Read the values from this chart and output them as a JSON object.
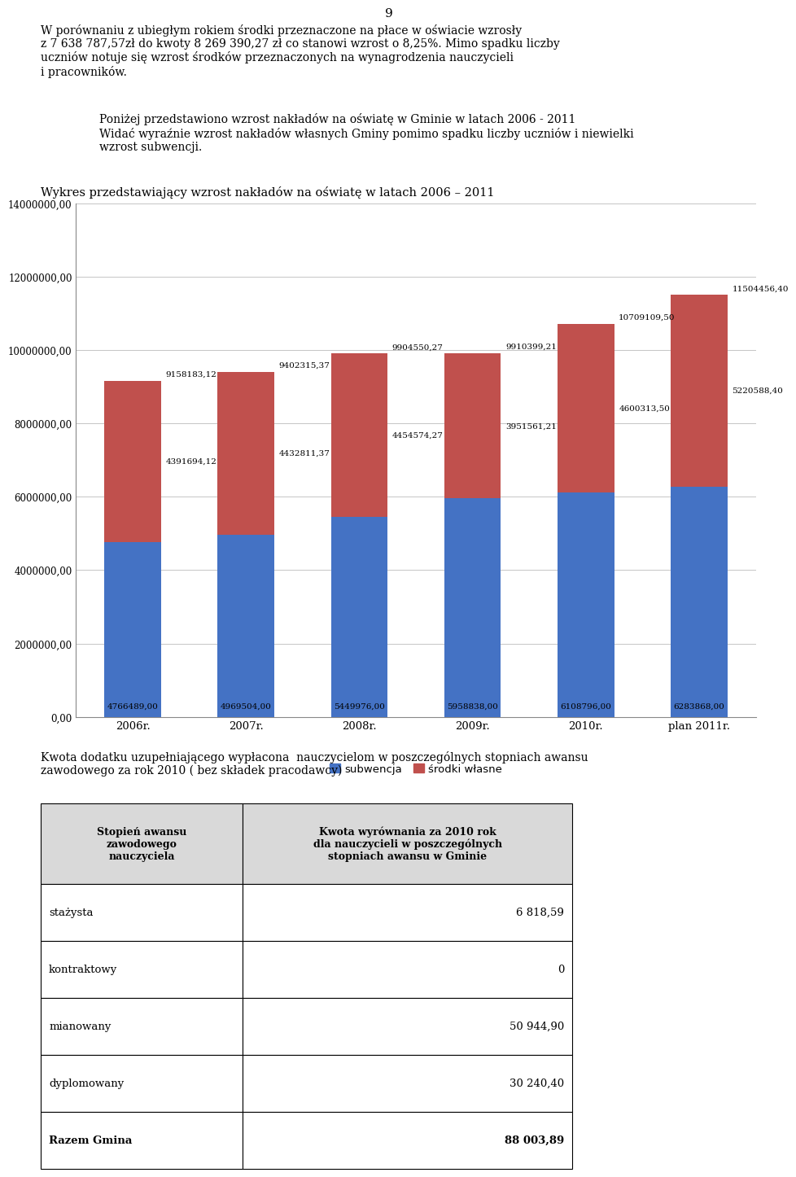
{
  "page_number": "9",
  "intro_text": "W porównaniu z ubiegłym rokiem środki przeznaczone na płace w oświacie wzrosły\nz 7 638 787,57zł do kwoty 8 269 390,27 zł co stanowi wzrost o 8,25%. Mimo spadku liczby\nuczniów notuje się wzrost środków przeznaczonych na wynagrodzenia nauczycieli\ni pracowników.",
  "middle_text": "Poniżej przedstawiono wzrost nakładów na oświatę w Gminie w latach 2006 - 2011\nWidać wyraźnie wzrost nakładów własnych Gminy pomimo spadku liczby uczniów i niewielki\nwzrost subwencji.",
  "chart_title": "Wykres przedstawiający wzrost nakładów na oświatę w latach 2006 – 2011",
  "categories": [
    "2006r.",
    "2007r.",
    "2008r.",
    "2009r.",
    "2010r.",
    "plan 2011r."
  ],
  "subwencja": [
    4766489.0,
    4969504.0,
    5449976.0,
    5958838.0,
    6108796.0,
    6283868.0
  ],
  "srodki_wlasne": [
    4391694.12,
    4432811.37,
    4454574.27,
    3951561.21,
    4600313.5,
    5220588.4
  ],
  "totals": [
    9158183.12,
    9402315.37,
    9904550.27,
    9910399.21,
    10709109.5,
    11504456.4
  ],
  "subwencja_labels": [
    "4766489,00",
    "4969504,00",
    "5449976,00",
    "5958838,00",
    "6108796,00",
    "6283868,00"
  ],
  "srodki_labels": [
    "4391694,12",
    "4432811,37",
    "4454574,27",
    "3951561,21",
    "4600313,50",
    "5220588,40"
  ],
  "total_labels": [
    "9158183,12",
    "9402315,37",
    "9904550,27",
    "9910399,21",
    "10709109,50",
    "11504456,40"
  ],
  "bar_color_blue": "#4472C4",
  "bar_color_red": "#C0504D",
  "ylim": [
    0,
    14000000
  ],
  "yticks": [
    0,
    2000000,
    4000000,
    6000000,
    8000000,
    10000000,
    12000000,
    14000000
  ],
  "ytick_labels": [
    "0,00",
    "2000000,00",
    "4000000,00",
    "6000000,00",
    "8000000,00",
    "10000000,00",
    "12000000,00",
    "14000000,00"
  ],
  "legend_subwencja": "subwencja",
  "legend_srodki": "środki własne",
  "outro_text": "Kwota dodatku uzupełniającego wypłacona  nauczycielom w poszczególnych stopniach awansu\nzawodowego za rok 2010 ( bez składek pracodawcy)",
  "table_header1": "Stopień awansu\nzawodowego\nnauczyciela",
  "table_header2": "Kwota wyrównania za 2010 rok\ndla nauczycieli w poszczególnych\nstopniach awansu w Gminie",
  "table_rows": [
    [
      "stażysta",
      "6 818,59"
    ],
    [
      "kontraktowy",
      "0"
    ],
    [
      "mianowany",
      "50 944,90"
    ],
    [
      "dyplomowany",
      "30 240,40"
    ],
    [
      "Razem Gmina",
      "88 003,89"
    ]
  ],
  "background_color": "#ffffff",
  "text_color": "#000000"
}
